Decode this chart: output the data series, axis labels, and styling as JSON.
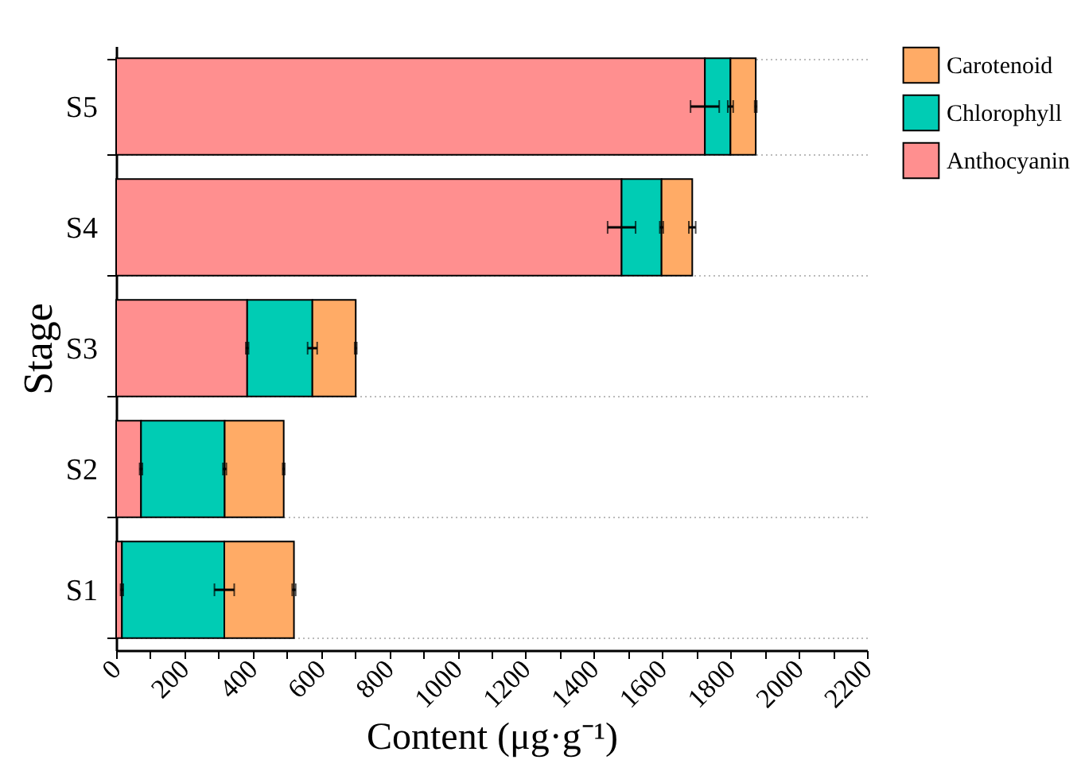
{
  "chart_data": {
    "type": "bar",
    "orientation": "horizontal",
    "stacked": true,
    "xlabel": "Content (μg·g⁻¹)",
    "ylabel": "Stage",
    "categories": [
      "S5",
      "S4",
      "S3",
      "S2",
      "S1"
    ],
    "series": [
      {
        "name": "Anthocyanin",
        "color": "#ff8f8f",
        "values": [
          1725,
          1481,
          384,
          73,
          17
        ],
        "errors": [
          42,
          41,
          4,
          4,
          4
        ]
      },
      {
        "name": "Chlorophyll",
        "color": "#00ccb4",
        "values": [
          75,
          117,
          191,
          245,
          300
        ],
        "errors": [
          8,
          5,
          14,
          5,
          29
        ]
      },
      {
        "name": "Carotenoid",
        "color": "#ffab66",
        "values": [
          74,
          90,
          127,
          173,
          204
        ],
        "errors": [
          3,
          10,
          3,
          3,
          5
        ]
      }
    ],
    "xlim": [
      0,
      2200
    ],
    "xticks": [
      0,
      {
        "value": 100,
        "label": null
      },
      200,
      {
        "value": 300,
        "label": null
      },
      400,
      {
        "value": 500,
        "label": null
      },
      600,
      {
        "value": 700,
        "label": null
      },
      800,
      {
        "value": 900,
        "label": null
      },
      1000,
      {
        "value": 1100,
        "label": null
      },
      1200,
      {
        "value": 1300,
        "label": null
      },
      1400,
      {
        "value": 1500,
        "label": null
      },
      1600,
      {
        "value": 1700,
        "label": null
      },
      1800,
      {
        "value": 1900,
        "label": null
      },
      2000,
      {
        "value": 2100,
        "label": null
      },
      2200
    ],
    "grid": "y",
    "legend": "top right"
  }
}
